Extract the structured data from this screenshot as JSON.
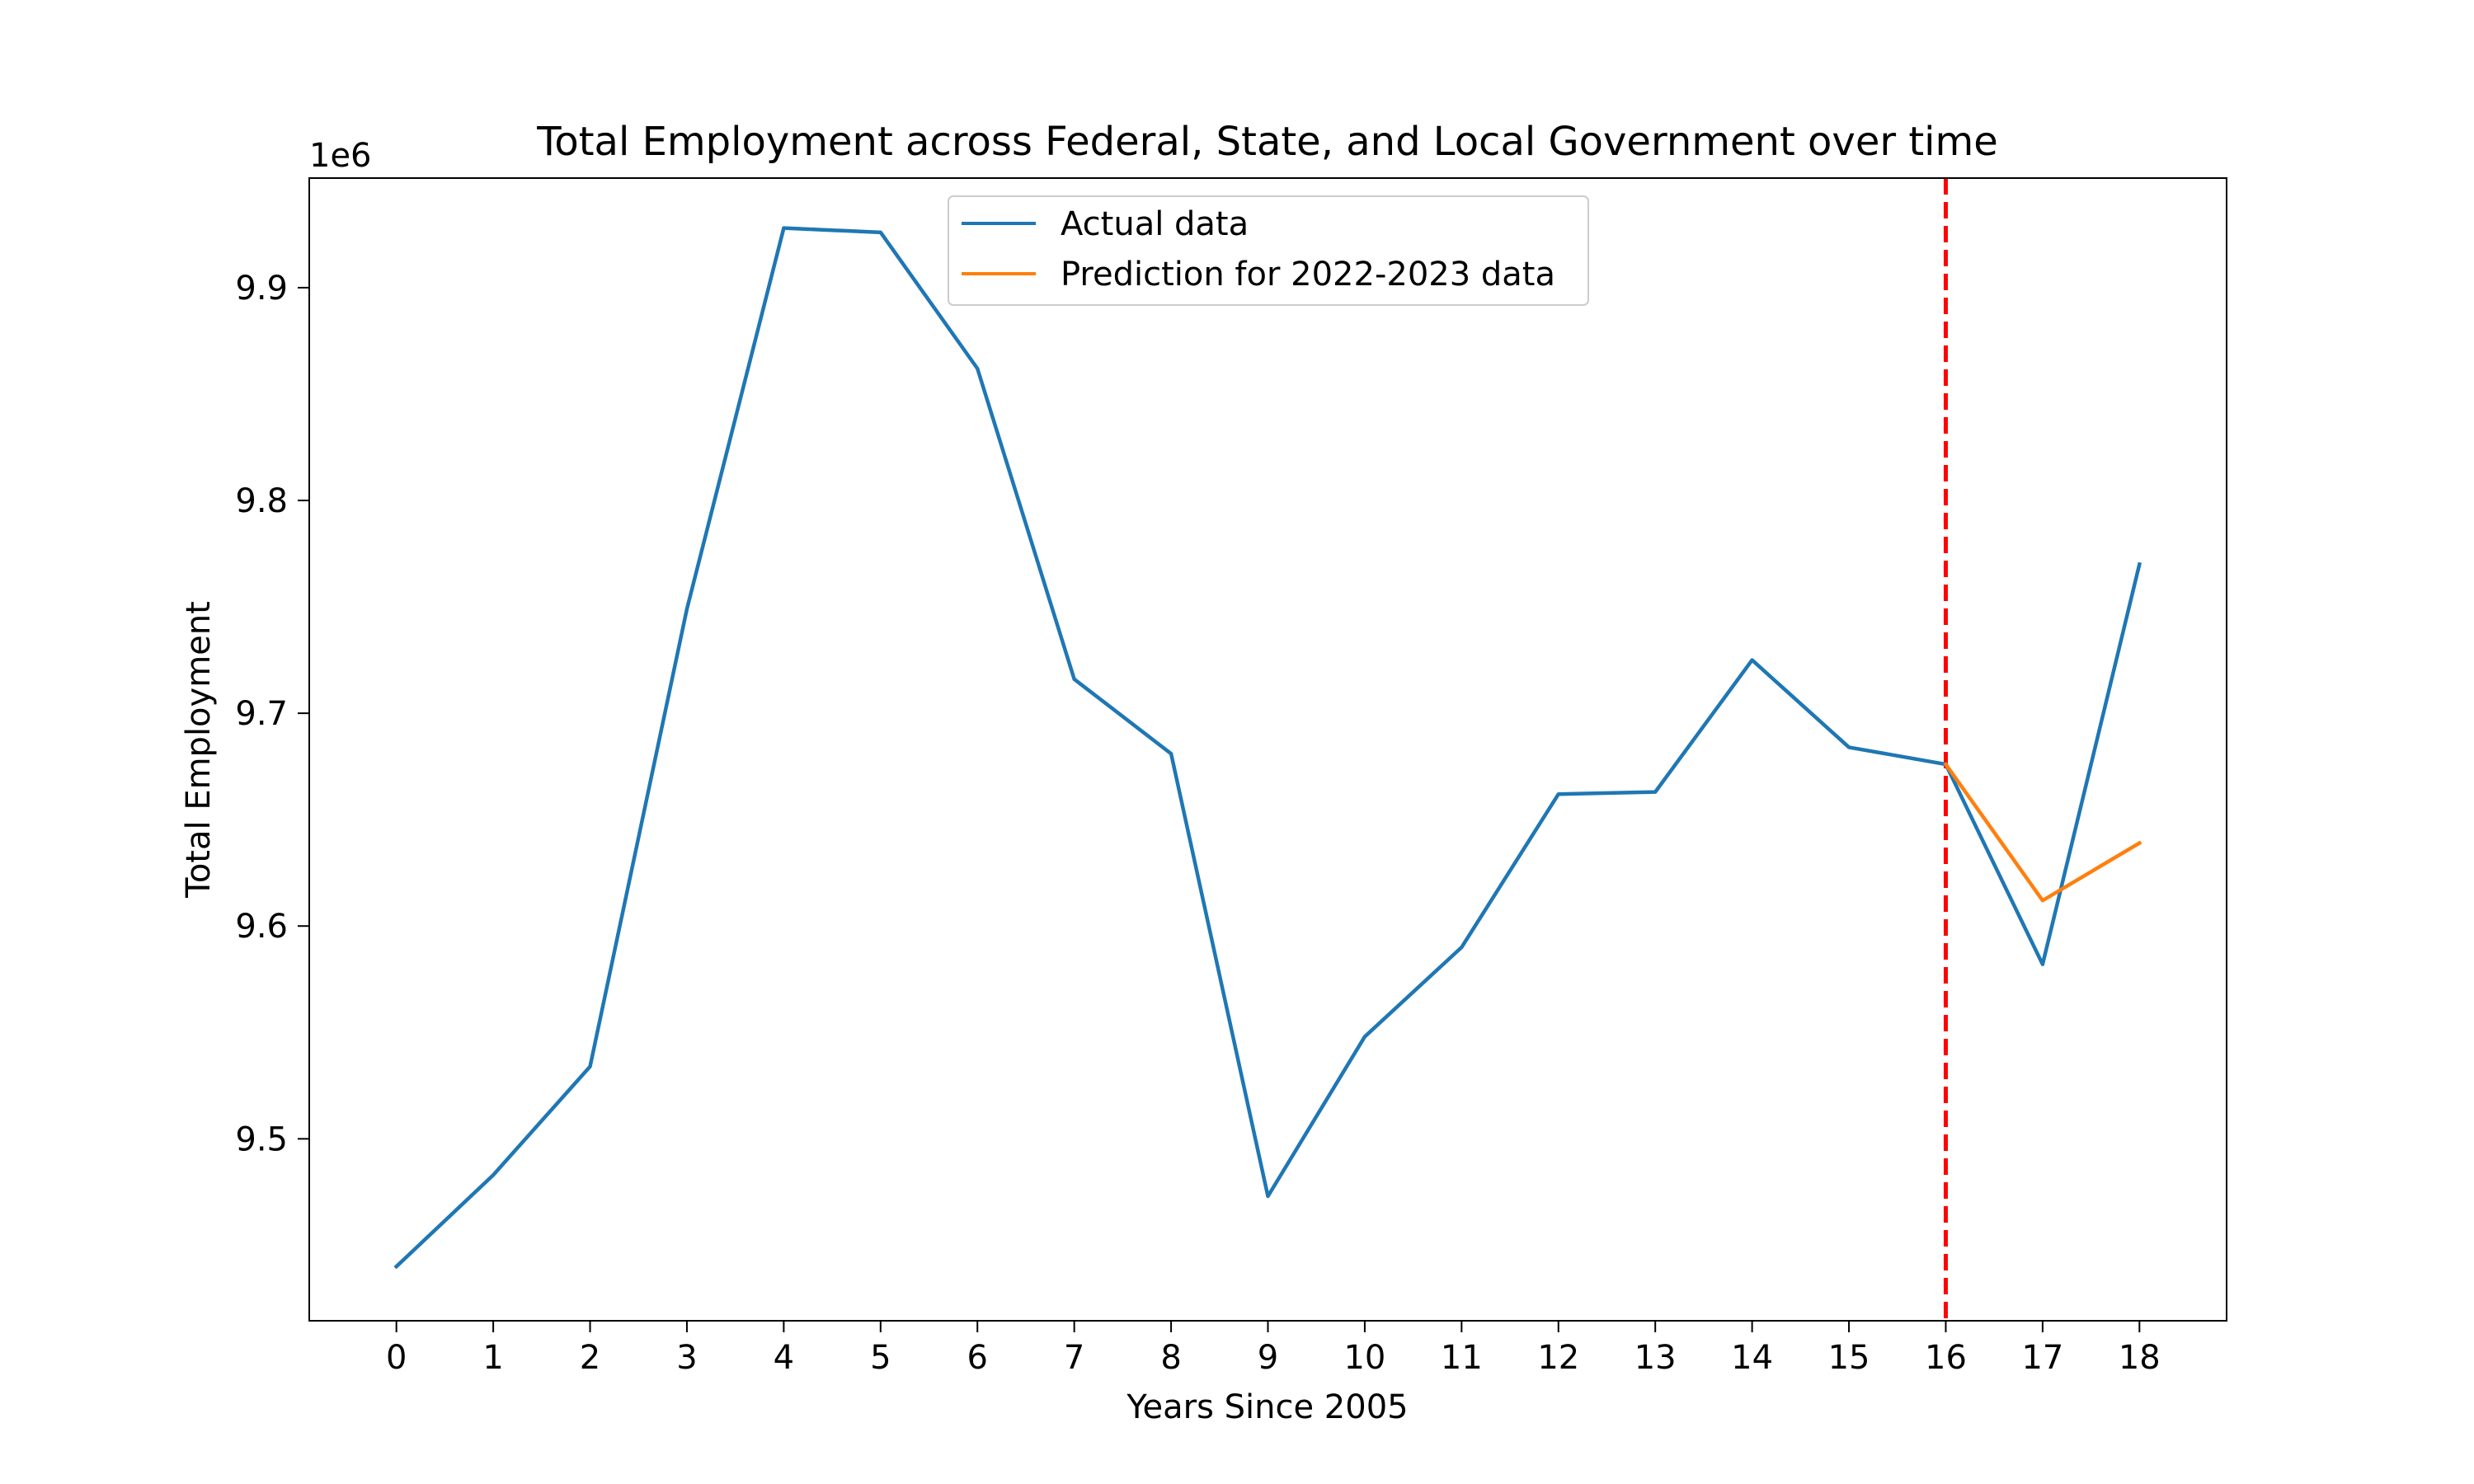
{
  "chart_data": {
    "type": "line",
    "title": "Total Employment across Federal, State, and Local Government over time",
    "xlabel": "Years Since 2005",
    "ylabel": "Total Employment",
    "y_offset_label": "1e6",
    "xlim": [
      -0.9,
      18.9
    ],
    "ylim": [
      9.4145,
      9.9515
    ],
    "x_ticks": [
      0,
      1,
      2,
      3,
      4,
      5,
      6,
      7,
      8,
      9,
      10,
      11,
      12,
      13,
      14,
      15,
      16,
      17,
      18
    ],
    "y_ticks": [
      9.5,
      9.6,
      9.7,
      9.8,
      9.9
    ],
    "y_tick_labels": [
      "9.5",
      "9.6",
      "9.7",
      "9.8",
      "9.9"
    ],
    "grid": false,
    "legend_position": "upper-center",
    "series": [
      {
        "name": "Actual data",
        "color": "#1f77b4",
        "x": [
          0,
          1,
          2,
          3,
          4,
          5,
          6,
          7,
          8,
          9,
          10,
          11,
          12,
          13,
          14,
          15,
          16,
          17,
          18
        ],
        "values": [
          9.44,
          9.483,
          9.534,
          9.749,
          9.928,
          9.926,
          9.862,
          9.716,
          9.681,
          9.473,
          9.548,
          9.59,
          9.662,
          9.663,
          9.725,
          9.684,
          9.676,
          9.582,
          9.77
        ]
      },
      {
        "name": "Prediction for 2022-2023 data",
        "color": "#ff7f0e",
        "x": [
          16,
          17,
          18
        ],
        "values": [
          9.676,
          9.612,
          9.639
        ]
      }
    ],
    "vline": {
      "x": 16,
      "color": "#ff0000",
      "style": "dashed"
    }
  }
}
